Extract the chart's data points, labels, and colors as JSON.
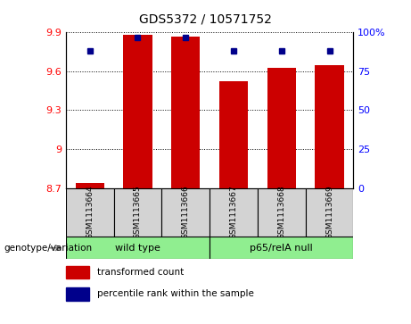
{
  "title": "GDS5372 / 10571752",
  "samples": [
    "GSM1113664",
    "GSM1113665",
    "GSM1113666",
    "GSM1113667",
    "GSM1113668",
    "GSM1113669"
  ],
  "red_values": [
    8.74,
    9.88,
    9.87,
    9.52,
    9.63,
    9.65
  ],
  "blue_values": [
    88,
    97,
    97,
    88,
    88,
    88
  ],
  "ylim_left": [
    8.7,
    9.9
  ],
  "ylim_right": [
    0,
    100
  ],
  "yticks_left": [
    8.7,
    9.0,
    9.3,
    9.6,
    9.9
  ],
  "yticks_right": [
    0,
    25,
    50,
    75,
    100
  ],
  "ytick_labels_left": [
    "8.7",
    "9",
    "9.3",
    "9.6",
    "9.9"
  ],
  "ytick_labels_right": [
    "0",
    "25",
    "50",
    "75",
    "100%"
  ],
  "group_ranges": [
    {
      "label": "wild type",
      "start": 0,
      "end": 2
    },
    {
      "label": "p65/relA null",
      "start": 3,
      "end": 5
    }
  ],
  "group_label": "genotype/variation",
  "legend_red": "transformed count",
  "legend_blue": "percentile rank within the sample",
  "bar_color": "#cc0000",
  "dot_color": "#00008b",
  "sample_box_color": "#d3d3d3",
  "group_box_color": "#90ee90",
  "base_value": 8.7
}
